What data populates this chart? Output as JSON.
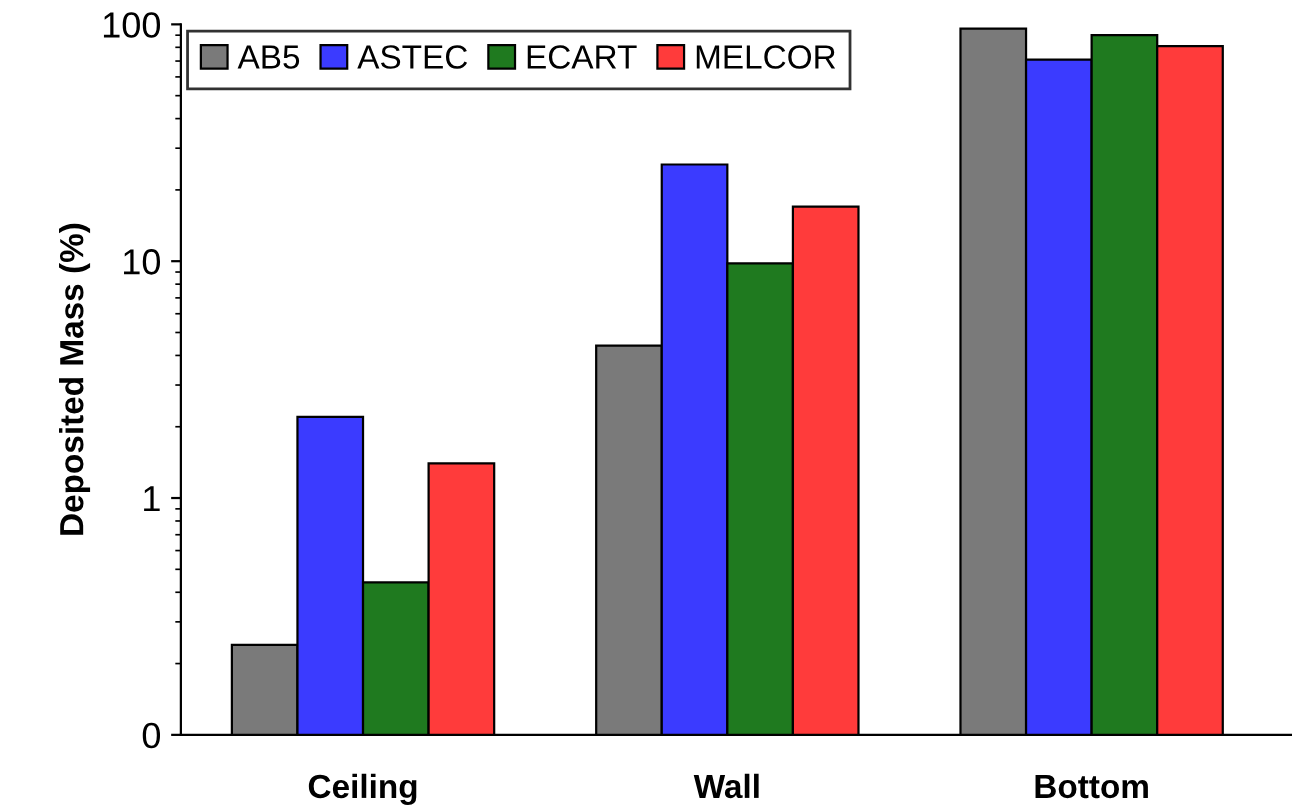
{
  "chart_data": {
    "type": "bar",
    "ylabel": "Deposited Mass (%)",
    "categories": [
      "Ceiling",
      "Wall",
      "Bottom"
    ],
    "series": [
      {
        "name": "AB5",
        "color": "#7a7a7a",
        "values": [
          0.24,
          4.4,
          96
        ]
      },
      {
        "name": "ASTEC",
        "color": "#3b3bff",
        "values": [
          2.2,
          25.6,
          71
        ]
      },
      {
        "name": "ECART",
        "color": "#1f7a1f",
        "values": [
          0.44,
          9.8,
          90
        ]
      },
      {
        "name": "MELCOR",
        "color": "#ff3b3b",
        "values": [
          1.4,
          17,
          81
        ]
      }
    ],
    "log": "y",
    "ylim": [
      0.1,
      100
    ],
    "yticks": [
      {
        "value": 0.1,
        "label": "0"
      },
      1,
      10,
      100
    ],
    "grid": false,
    "legend": "top left"
  }
}
